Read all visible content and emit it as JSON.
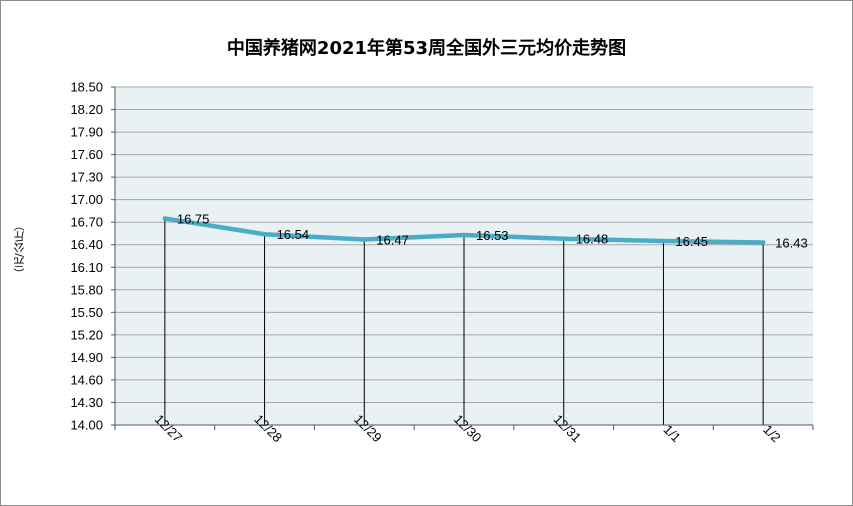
{
  "chart_data": {
    "type": "line",
    "title": "中国养猪网2021年第53周全国外三元均价走势图",
    "ylabel": "（元/公斤）",
    "xlabel": "",
    "categories": [
      "12/27",
      "12/28",
      "12/29",
      "12/30",
      "12/31",
      "1/1",
      "1/2"
    ],
    "values": [
      16.75,
      16.54,
      16.47,
      16.53,
      16.48,
      16.45,
      16.43
    ],
    "data_labels": [
      "16.75",
      "16.54",
      "16.47",
      "16.53",
      "16.48",
      "16.45",
      "16.43"
    ],
    "ylim": [
      14.0,
      18.5
    ],
    "yticks": [
      "18.50",
      "18.20",
      "17.90",
      "17.60",
      "17.30",
      "17.00",
      "16.70",
      "16.40",
      "16.10",
      "15.80",
      "15.50",
      "15.20",
      "14.90",
      "14.60",
      "14.30",
      "14.00"
    ],
    "grid": true,
    "legend": "none",
    "colors": {
      "line": "#4bacc6",
      "plot_bg": "#e9f1f5",
      "grid": "#a6a6a6"
    }
  }
}
